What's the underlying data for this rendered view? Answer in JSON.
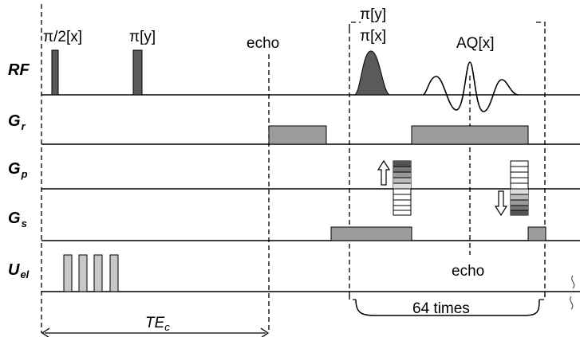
{
  "channels": {
    "rf": "RF",
    "gr": {
      "main": "G",
      "sub": "r"
    },
    "gp": {
      "main": "G",
      "sub": "p"
    },
    "gs": {
      "main": "G",
      "sub": "s"
    },
    "uel": {
      "main": "U",
      "sub": "el"
    }
  },
  "rf_labels": {
    "pulse_90": "π/2[x]",
    "pulse_180": "π[y]",
    "echo": "echo",
    "pulse_y": "π[y]",
    "pulse_x": "π[x]",
    "acquisition": "AQ[x]"
  },
  "echo_label": "echo",
  "loop_label": "64 times",
  "te_label": {
    "main": "TE",
    "sub": "c"
  }
}
